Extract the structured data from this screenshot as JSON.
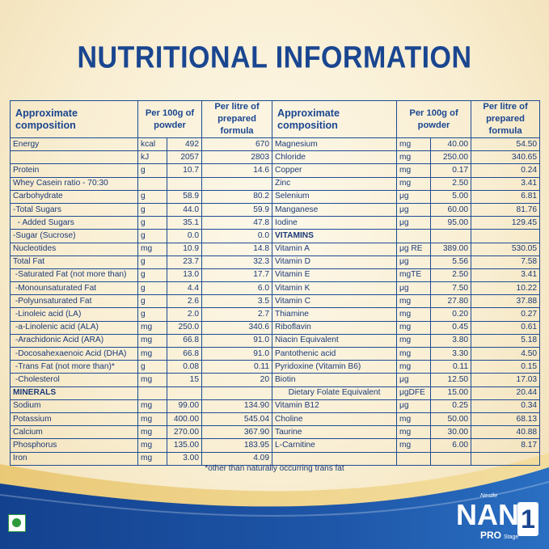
{
  "title": "NUTRITIONAL INFORMATION",
  "headers": {
    "left_composition": "Approximate composition",
    "left_per100": "Per 100g of powder",
    "left_perlitre": "Per litre of prepared formula",
    "right_composition": "Approximate composition",
    "right_per100": "Per 100g of powder",
    "right_perlitre": "Per litre of prepared formula"
  },
  "rows": [
    {
      "l": [
        "Energy",
        "kcal",
        "492",
        "670"
      ],
      "r": [
        "Magnesium",
        "mg",
        "40.00",
        "54.50"
      ]
    },
    {
      "l": [
        "",
        "kJ",
        "2057",
        "2803"
      ],
      "r": [
        "Chloride",
        "mg",
        "250.00",
        "340.65"
      ]
    },
    {
      "l": [
        "Protein",
        "g",
        "10.7",
        "14.6"
      ],
      "r": [
        "Copper",
        "mg",
        "0.17",
        "0.24"
      ]
    },
    {
      "l": [
        "Whey Casein ratio - 70:30",
        "",
        "",
        ""
      ],
      "r": [
        "Zinc",
        "mg",
        "2.50",
        "3.41"
      ]
    },
    {
      "l": [
        "Carbohydrate",
        "g",
        "58.9",
        "80.2"
      ],
      "r": [
        "Selenium",
        "μg",
        "5.00",
        "6.81"
      ]
    },
    {
      "l": [
        "-Total Sugars",
        "g",
        "44.0",
        "59.9"
      ],
      "r": [
        "Manganese",
        "μg",
        "60.00",
        "81.76"
      ]
    },
    {
      "l": [
        "  - Added Sugars",
        "g",
        "35.1",
        "47.8"
      ],
      "r": [
        "Iodine",
        "μg",
        "95.00",
        "129.45"
      ]
    },
    {
      "l": [
        "-Sugar (Sucrose)",
        "g",
        "0.0",
        "0.0"
      ],
      "r": [
        "VITAMINS",
        "",
        "",
        ""
      ]
    },
    {
      "l": [
        "Nucleotides",
        "mg",
        "10.9",
        "14.8"
      ],
      "r": [
        "Vitamin A",
        "μg RE",
        "389.00",
        "530.05"
      ]
    },
    {
      "l": [
        "Total Fat",
        "g",
        "23.7",
        "32.3"
      ],
      "r": [
        "Vitamin D",
        "μg",
        "5.56",
        "7.58"
      ]
    },
    {
      "l": [
        " -Saturated Fat (not more than)",
        "g",
        "13.0",
        "17.7"
      ],
      "r": [
        "Vitamin E",
        "mgTE",
        "2.50",
        "3.41"
      ]
    },
    {
      "l": [
        " -Monounsaturated Fat",
        "g",
        "4.4",
        "6.0"
      ],
      "r": [
        "Vitamin K",
        "μg",
        "7.50",
        "10.22"
      ]
    },
    {
      "l": [
        " -Polyunsaturated Fat",
        "g",
        "2.6",
        "3.5"
      ],
      "r": [
        "Vitamin C",
        "mg",
        "27.80",
        "37.88"
      ]
    },
    {
      "l": [
        " -Linoleic acid (LA)",
        "g",
        "2.0",
        "2.7"
      ],
      "r": [
        "Thiamine",
        "mg",
        "0.20",
        "0.27"
      ]
    },
    {
      "l": [
        " -a-Linolenic acid (ALA)",
        "mg",
        "250.0",
        "340.6"
      ],
      "r": [
        "Riboflavin",
        "mg",
        "0.45",
        "0.61"
      ]
    },
    {
      "l": [
        " -Arachidonic Acid (ARA)",
        "mg",
        "66.8",
        "91.0"
      ],
      "r": [
        "Niacin Equivalent",
        "mg",
        "3.80",
        "5.18"
      ]
    },
    {
      "l": [
        " -Docosahexaenoic Acid (DHA)",
        "mg",
        "66.8",
        "91.0"
      ],
      "r": [
        "Pantothenic acid",
        "mg",
        "3.30",
        "4.50"
      ]
    },
    {
      "l": [
        " -Trans Fat (not more than)*",
        "g",
        "0.08",
        "0.11"
      ],
      "r": [
        "Pyridoxine (Vitamin B6)",
        "mg",
        "0.11",
        "0.15"
      ]
    },
    {
      "l": [
        " -Cholesterol",
        "mg",
        "15",
        "20"
      ],
      "r": [
        "Biotin",
        "μg",
        "12.50",
        "17.03"
      ]
    },
    {
      "l": [
        "MINERALS",
        "",
        "",
        ""
      ],
      "r": [
        "Dietary Folate Equivalent",
        "μgDFE",
        "15.00",
        "20.44"
      ]
    },
    {
      "l": [
        "Sodium",
        "mg",
        "99.00",
        "134.90"
      ],
      "r": [
        "Vitamin B12",
        "μg",
        "0.25",
        "0.34"
      ]
    },
    {
      "l": [
        "Potassium",
        "mg",
        "400.00",
        "545.04"
      ],
      "r": [
        "Choline",
        "mg",
        "50.00",
        "68.13"
      ]
    },
    {
      "l": [
        "Calcium",
        "mg",
        "270.00",
        "367.90"
      ],
      "r": [
        "Taurine",
        "mg",
        "30.00",
        "40.88"
      ]
    },
    {
      "l": [
        "Phosphorus",
        "mg",
        "135.00",
        "183.95"
      ],
      "r": [
        "L-Carnitine",
        "mg",
        "6.00",
        "8.17"
      ]
    },
    {
      "l": [
        "Iron",
        "mg",
        "3.00",
        "4.09"
      ],
      "r": [
        "",
        "",
        "",
        ""
      ]
    }
  ],
  "bold_labels": [
    "MINERALS",
    "VITAMINS"
  ],
  "centered_labels": [
    "Dietary Folate Equivalent"
  ],
  "footnote": "*other than naturally occurring trans fat",
  "brand": {
    "maker": "Nestle",
    "name": "NAN",
    "variant": "PRO",
    "stage_label": "Stage",
    "stage_number": "1"
  },
  "colors": {
    "primary_blue": "#1a4690",
    "veg_green": "#2f9a3c",
    "background_cream": "#f9eed2"
  },
  "icons": [
    "vegetarian-mark-icon"
  ]
}
